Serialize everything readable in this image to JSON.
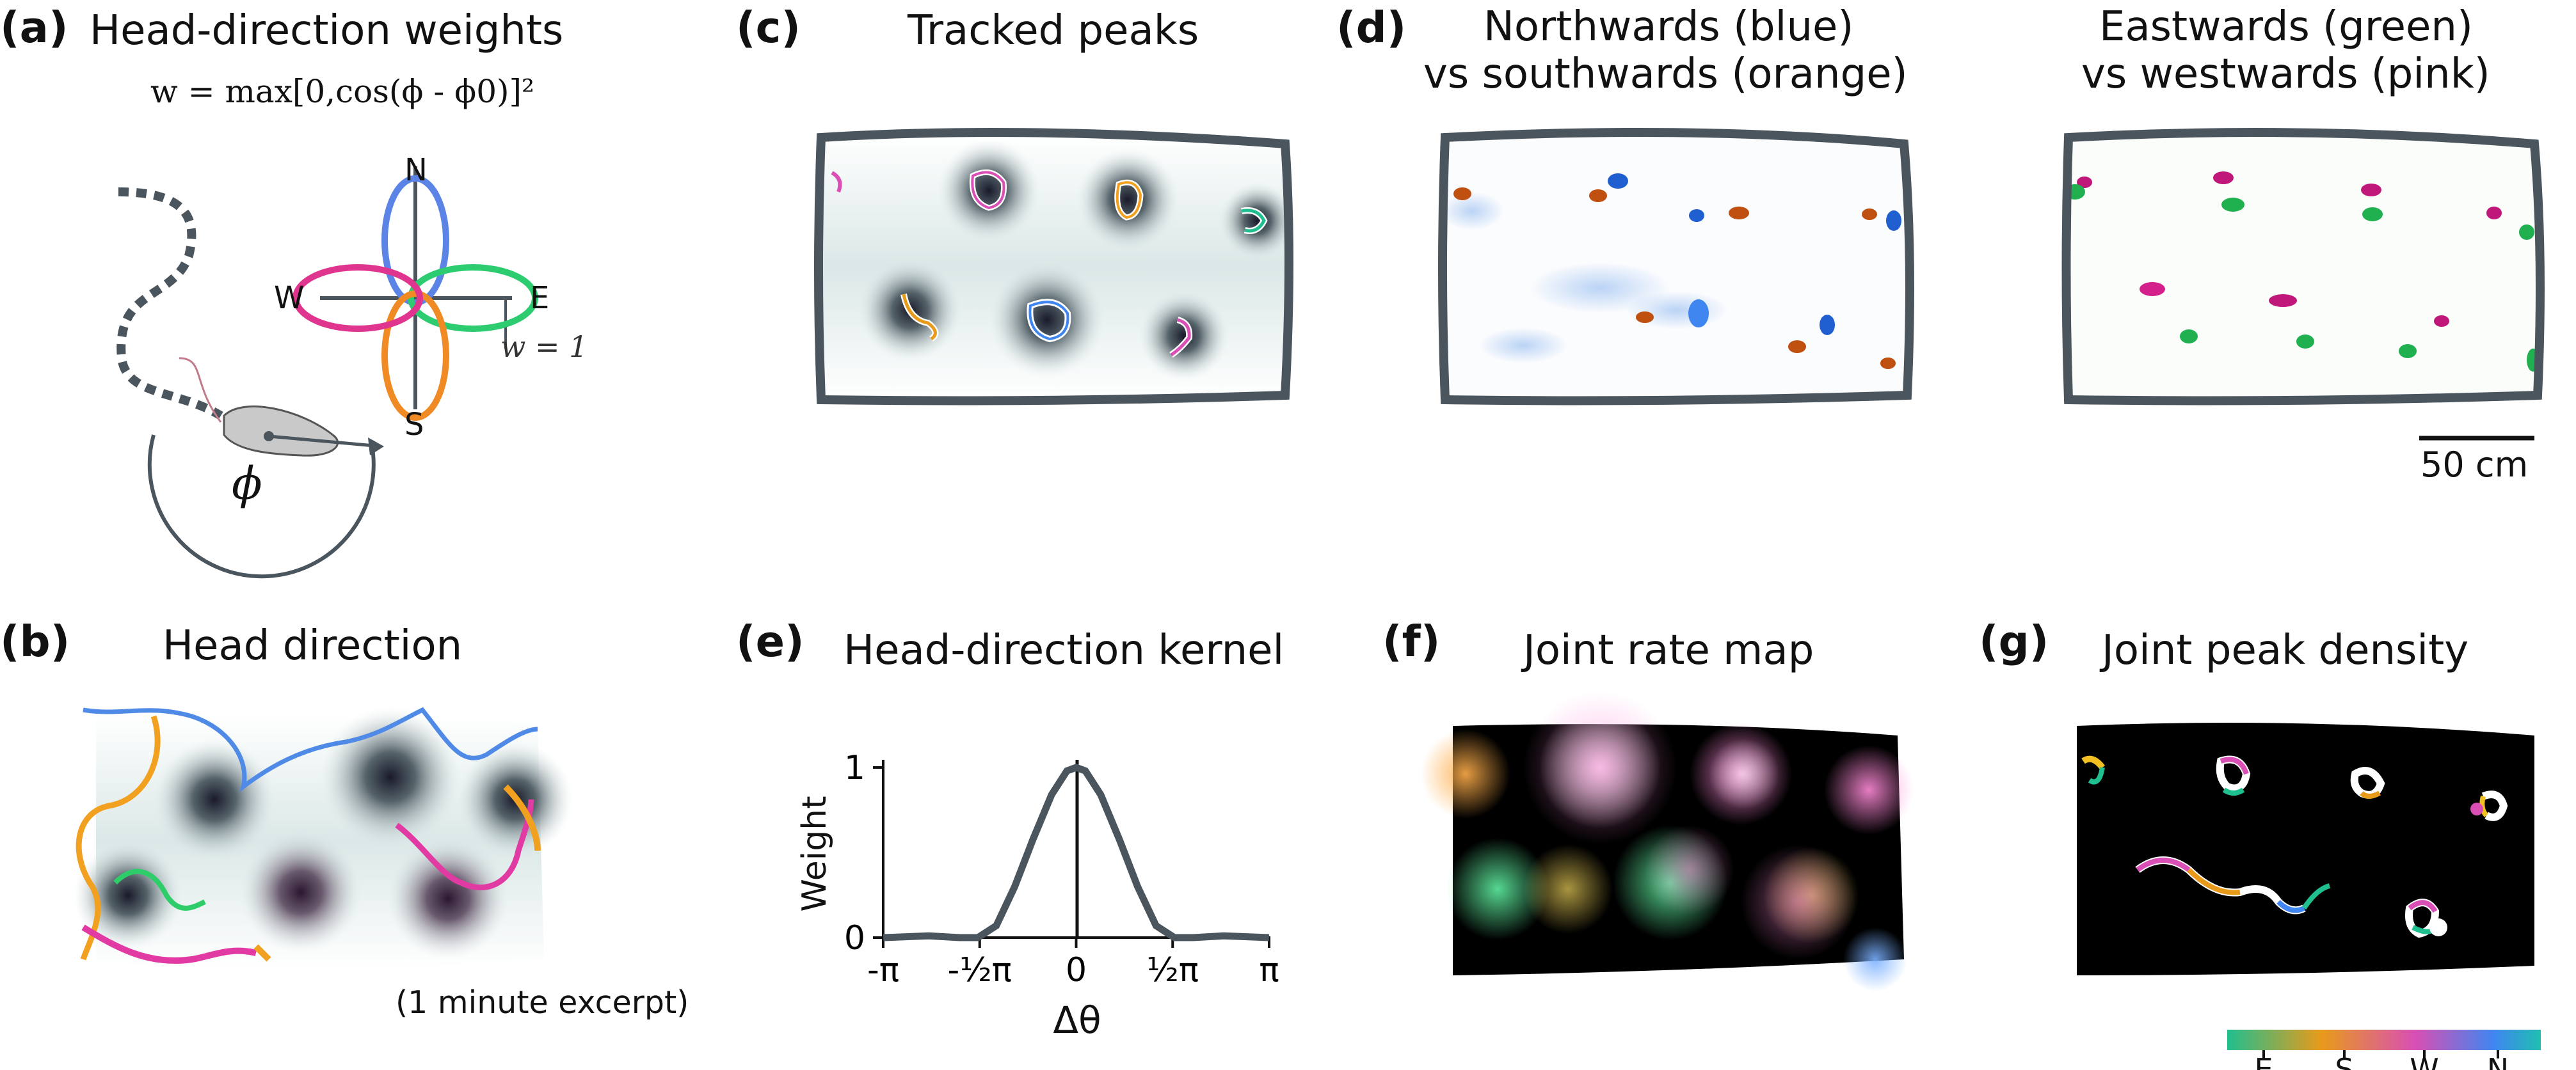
{
  "panels": {
    "a": {
      "label": "(a)",
      "title": "Head-direction weights",
      "formula": "w = max[0,cos(ϕ - ϕ0)]²",
      "compass": {
        "n": "N",
        "e": "E",
        "s": "S",
        "w": "W"
      },
      "w_label": "w = 1",
      "phi_label": "ϕ"
    },
    "b": {
      "label": "(b)",
      "title": "Head direction",
      "note": "(1 minute excerpt)"
    },
    "c": {
      "label": "(c)",
      "title": "Tracked peaks"
    },
    "d": {
      "label": "(d)",
      "title_left_1": "Northwards (blue)",
      "title_left_2": "vs southwards (orange)",
      "title_right_1": "Eastwards (green)",
      "title_right_2": "vs westwards (pink)",
      "scalebar": "50 cm"
    },
    "e": {
      "label": "(e)",
      "title": "Head-direction kernel"
    },
    "f": {
      "label": "(f)",
      "title": "Joint rate map"
    },
    "g": {
      "label": "(g)",
      "title": "Joint peak density",
      "colorbar_labels": [
        "E",
        "S",
        "W",
        "N"
      ],
      "colorbar_colors": [
        "#1fbf8f",
        "#e89a1a",
        "#d94fb5",
        "#3f86f0",
        "#1fbfb0"
      ]
    }
  },
  "chart_data": {
    "type": "line",
    "title": "Head-direction kernel",
    "xlabel": "Δθ",
    "ylabel": "Weight",
    "xticks": [
      "-π",
      "-½π",
      "0",
      "½π",
      "π"
    ],
    "yticks": [
      "0",
      "1"
    ],
    "xlim": [
      -3.14159,
      3.14159
    ],
    "ylim": [
      0,
      1
    ],
    "series": [
      {
        "x": [
          -3.14,
          -2.4,
          -1.9,
          -1.6,
          -1.3,
          -1.0,
          -0.7,
          -0.4,
          -0.15,
          0,
          0.15,
          0.4,
          0.7,
          1.0,
          1.3,
          1.6,
          1.9,
          2.4,
          3.14
        ],
        "y": [
          0.0,
          0.01,
          0.0,
          0.0,
          0.07,
          0.3,
          0.58,
          0.84,
          0.98,
          1.0,
          0.98,
          0.84,
          0.58,
          0.3,
          0.07,
          0.0,
          0.0,
          0.01,
          0.0
        ]
      }
    ],
    "colors": {
      "line": "#4a555e"
    }
  }
}
